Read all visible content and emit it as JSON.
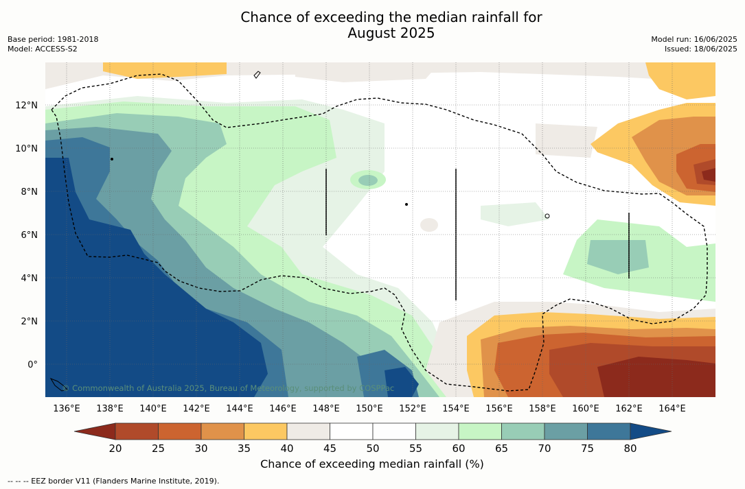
{
  "title_line1": "Chance of exceeding the median rainfall for",
  "title_line2": "August 2025",
  "meta_left": [
    "Base period: 1981-2018",
    "Model: ACCESS-S2"
  ],
  "meta_right": [
    "Model run: 16/06/2025",
    "Issued: 18/06/2025"
  ],
  "map": {
    "lat_labels": [
      "12°N",
      "10°N",
      "8°N",
      "6°N",
      "4°N",
      "2°N",
      "0°"
    ],
    "lon_labels": [
      "136°E",
      "138°E",
      "140°E",
      "142°E",
      "144°E",
      "146°E",
      "148°E",
      "150°E",
      "152°E",
      "154°E",
      "156°E",
      "158°E",
      "160°E",
      "162°E",
      "164°E"
    ],
    "watermark": "© Commonwealth of Australia 2025, Bureau of Meteorology, supported by COSPPac"
  },
  "colorbar": {
    "ticks": [
      "20",
      "25",
      "30",
      "35",
      "40",
      "45",
      "50",
      "55",
      "60",
      "65",
      "70",
      "75",
      "80"
    ],
    "colors": [
      "#8c2a1c",
      "#b04a2a",
      "#cc6430",
      "#e0924a",
      "#fcc862",
      "#efebe6",
      "#ffffff",
      "#fefefe",
      "#e6f3e6",
      "#c7f5c5",
      "#98cdb6",
      "#6b9fa4",
      "#3e7799",
      "#134b86"
    ],
    "label": "Chance of exceeding median rainfall (%)"
  },
  "footnote": "--  --  -- EEZ border V11 (Flanders Marine Institute, 2019)."
}
